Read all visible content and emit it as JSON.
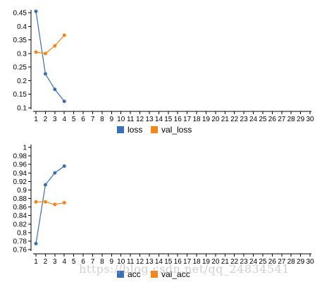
{
  "colors": {
    "blue": "#3a6fb5",
    "orange": "#f58518"
  },
  "chart_data": [
    {
      "type": "line",
      "x": [
        1,
        2,
        3,
        4,
        5,
        6,
        7,
        8,
        9,
        10,
        11,
        12,
        13,
        14,
        15,
        16,
        17,
        18,
        19,
        20,
        21,
        22,
        23,
        24,
        25,
        26,
        27,
        28,
        29,
        30
      ],
      "xlim": [
        1,
        30
      ],
      "ylim": [
        0.1,
        0.45
      ],
      "yticks": [
        "0.1",
        "0.15",
        "0.2",
        "0.25",
        "0.3",
        "0.35",
        "0.4",
        "0.45"
      ],
      "ytick_values": [
        0.1,
        0.15,
        0.2,
        0.25,
        0.3,
        0.35,
        0.4,
        0.45
      ],
      "series": [
        {
          "name": "loss",
          "color": "#3a6fb5",
          "x": [
            1,
            2,
            3,
            4
          ],
          "values": [
            0.455,
            0.225,
            0.168,
            0.124
          ]
        },
        {
          "name": "val_loss",
          "color": "#f58518",
          "x": [
            1,
            2,
            3,
            4
          ],
          "values": [
            0.305,
            0.3,
            0.328,
            0.367
          ]
        }
      ],
      "legend": "bottom-center"
    },
    {
      "type": "line",
      "x": [
        1,
        2,
        3,
        4,
        5,
        6,
        7,
        8,
        9,
        10,
        11,
        12,
        13,
        14,
        15,
        16,
        17,
        18,
        19,
        20,
        21,
        22,
        23,
        24,
        25,
        26,
        27,
        28,
        29,
        30
      ],
      "xlim": [
        1,
        30
      ],
      "ylim": [
        0.76,
        1
      ],
      "yticks": [
        "0.76",
        "0.78",
        "0.8",
        "0.82",
        "0.84",
        "0.86",
        "0.88",
        "0.9",
        "0.92",
        "0.94",
        "0.96",
        "0.98",
        "1"
      ],
      "ytick_values": [
        0.76,
        0.78,
        0.8,
        0.82,
        0.84,
        0.86,
        0.88,
        0.9,
        0.92,
        0.94,
        0.96,
        0.98,
        1
      ],
      "series": [
        {
          "name": "acc",
          "color": "#3a6fb5",
          "x": [
            1,
            2,
            3,
            4
          ],
          "values": [
            0.774,
            0.912,
            0.94,
            0.956
          ]
        },
        {
          "name": "val_acc",
          "color": "#f58518",
          "x": [
            1,
            2,
            3,
            4
          ],
          "values": [
            0.872,
            0.872,
            0.866,
            0.87
          ]
        }
      ],
      "legend": "bottom-center"
    }
  ],
  "watermark": "https://blog.csdn.net/qq_24834541"
}
